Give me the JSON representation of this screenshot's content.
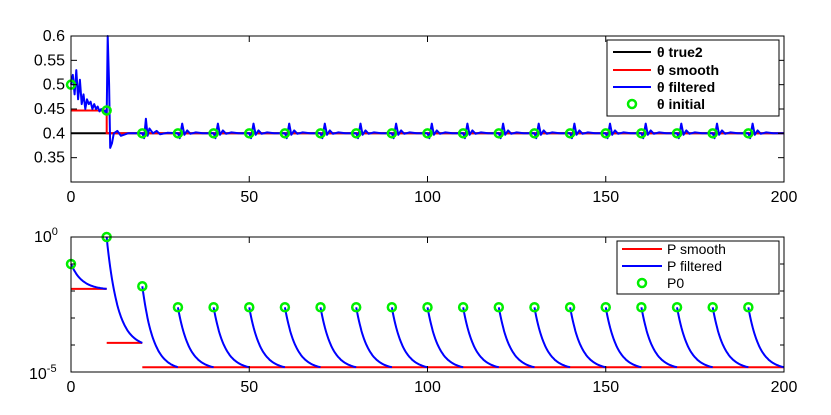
{
  "chart_data": [
    {
      "type": "line",
      "xlim": [
        0,
        200
      ],
      "ylim": [
        0.3,
        0.6
      ],
      "xticks": [
        0,
        50,
        100,
        150,
        200
      ],
      "yticks": [
        0.35,
        0.4,
        0.45,
        0.5,
        0.55,
        0.6
      ],
      "x_tick_labels": [
        "0",
        "50",
        "100",
        "150",
        "200"
      ],
      "y_tick_labels": [
        "0.35",
        "0.4",
        "0.45",
        "0.5",
        "0.55",
        "0.6"
      ],
      "grid": false,
      "legend_position": "top-right",
      "series": [
        {
          "name": "θ true2",
          "color": "#000000",
          "x": [
            0,
            10,
            10,
            200
          ],
          "y": [
            0.4,
            0.4,
            0.4,
            0.4
          ]
        },
        {
          "name": "θ smooth",
          "color": "#ff0000",
          "x": [
            0,
            10,
            10,
            200
          ],
          "y": [
            0.447,
            0.447,
            0.4,
            0.4
          ]
        },
        {
          "name": "θ filtered",
          "color": "#0000ff",
          "x": [
            0,
            0.5,
            1,
            1.5,
            2,
            2.5,
            3,
            3.5,
            4,
            4.5,
            5,
            5.5,
            6,
            6.5,
            7,
            7.5,
            8,
            8.5,
            9,
            9.5,
            10,
            10.3,
            10.7,
            11,
            11.5,
            12,
            13,
            14,
            16,
            20,
            20.5,
            21,
            21.5,
            22,
            23,
            24,
            25,
            27,
            30
          ],
          "y": [
            0.5,
            0.52,
            0.48,
            0.53,
            0.47,
            0.51,
            0.46,
            0.48,
            0.45,
            0.47,
            0.46,
            0.465,
            0.45,
            0.46,
            0.45,
            0.455,
            0.445,
            0.45,
            0.445,
            0.446,
            0.44,
            0.6,
            0.5,
            0.37,
            0.38,
            0.4,
            0.405,
            0.395,
            0.4,
            0.4,
            0.39,
            0.43,
            0.395,
            0.41,
            0.4,
            0.405,
            0.398,
            0.401,
            0.4
          ],
          "periodic_spike_x": [
            20,
            30,
            40,
            50,
            60,
            70,
            80,
            90,
            100,
            110,
            120,
            130,
            140,
            150,
            160,
            170,
            180,
            190
          ],
          "spike_peak_y": 0.42,
          "spike_trough_y": 0.39
        },
        {
          "name": "θ initial",
          "color": "#00ee00",
          "marker": "o",
          "x": [
            0,
            10,
            20,
            30,
            40,
            50,
            60,
            70,
            80,
            90,
            100,
            110,
            120,
            130,
            140,
            150,
            160,
            170,
            180,
            190
          ],
          "y": [
            0.5,
            0.447,
            0.4,
            0.4,
            0.4,
            0.4,
            0.4,
            0.4,
            0.4,
            0.4,
            0.4,
            0.4,
            0.4,
            0.4,
            0.4,
            0.4,
            0.4,
            0.4,
            0.4,
            0.4
          ]
        }
      ]
    },
    {
      "type": "line",
      "yscale": "log",
      "xlim": [
        0,
        200
      ],
      "ylim": [
        1e-05,
        1
      ],
      "xticks": [
        0,
        50,
        100,
        150,
        200
      ],
      "x_tick_labels": [
        "0",
        "50",
        "100",
        "150",
        "200"
      ],
      "y_tick_labels": [
        {
          "base": "10",
          "exp": "0",
          "value": 1
        },
        {
          "base": "10",
          "exp": "-5",
          "value": 1e-05
        }
      ],
      "grid": false,
      "legend_position": "top-right",
      "series": [
        {
          "name": "P smooth",
          "color": "#ff0000",
          "segments": [
            {
              "x": [
                0,
                10
              ],
              "y": [
                0.012,
                0.012
              ]
            },
            {
              "x": [
                10,
                20
              ],
              "y": [
                0.00012,
                0.00012
              ]
            },
            {
              "x": [
                20,
                200
              ],
              "y": [
                1.5e-05,
                1.5e-05
              ]
            }
          ]
        },
        {
          "name": "P filtered",
          "color": "#0000ff",
          "decay_segments": [
            {
              "x0": 0,
              "y0": 0.1,
              "y_end": 0.012
            },
            {
              "x0": 10,
              "y0": 1.0,
              "y_end": 0.00012
            },
            {
              "x0": 20,
              "y0": 0.015,
              "y_end": 1.5e-05
            },
            {
              "x0": 30,
              "y0": 0.0025,
              "y_end": 1.5e-05
            },
            {
              "x0": 40,
              "y0": 0.0025,
              "y_end": 1.5e-05
            },
            {
              "x0": 50,
              "y0": 0.0025,
              "y_end": 1.5e-05
            },
            {
              "x0": 60,
              "y0": 0.0025,
              "y_end": 1.5e-05
            },
            {
              "x0": 70,
              "y0": 0.0025,
              "y_end": 1.5e-05
            },
            {
              "x0": 80,
              "y0": 0.0025,
              "y_end": 1.5e-05
            },
            {
              "x0": 90,
              "y0": 0.0025,
              "y_end": 1.5e-05
            },
            {
              "x0": 100,
              "y0": 0.0025,
              "y_end": 1.5e-05
            },
            {
              "x0": 110,
              "y0": 0.0025,
              "y_end": 1.5e-05
            },
            {
              "x0": 120,
              "y0": 0.0025,
              "y_end": 1.5e-05
            },
            {
              "x0": 130,
              "y0": 0.0025,
              "y_end": 1.5e-05
            },
            {
              "x0": 140,
              "y0": 0.0025,
              "y_end": 1.5e-05
            },
            {
              "x0": 150,
              "y0": 0.0025,
              "y_end": 1.5e-05
            },
            {
              "x0": 160,
              "y0": 0.0025,
              "y_end": 1.5e-05
            },
            {
              "x0": 170,
              "y0": 0.0025,
              "y_end": 1.5e-05
            },
            {
              "x0": 180,
              "y0": 0.0025,
              "y_end": 1.5e-05
            },
            {
              "x0": 190,
              "y0": 0.0025,
              "y_end": 1.5e-05
            }
          ]
        },
        {
          "name": "P0",
          "color": "#00ee00",
          "marker": "o",
          "x": [
            0,
            10,
            20,
            30,
            40,
            50,
            60,
            70,
            80,
            90,
            100,
            110,
            120,
            130,
            140,
            150,
            160,
            170,
            180,
            190
          ],
          "y": [
            0.1,
            1.0,
            0.015,
            0.0025,
            0.0025,
            0.0025,
            0.0025,
            0.0025,
            0.0025,
            0.0025,
            0.0025,
            0.0025,
            0.0025,
            0.0025,
            0.0025,
            0.0025,
            0.0025,
            0.0025,
            0.0025,
            0.0025
          ]
        }
      ]
    }
  ]
}
